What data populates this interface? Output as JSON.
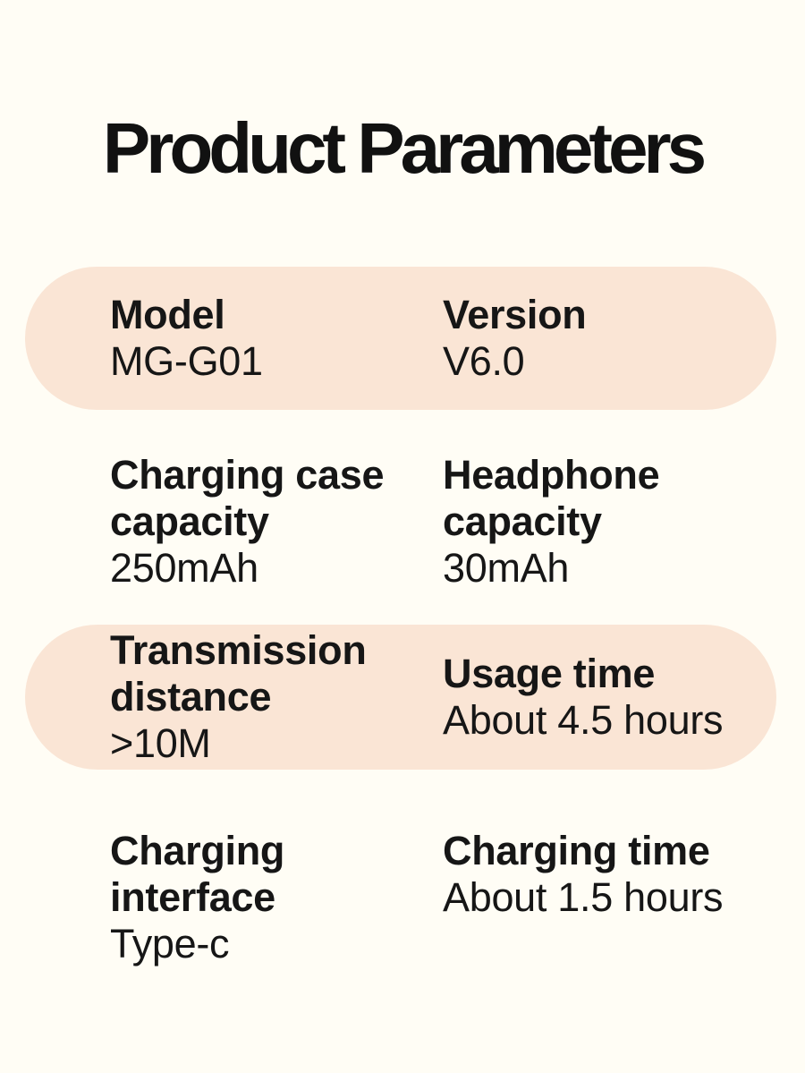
{
  "title": "Product Parameters",
  "colors": {
    "background": "#FFFDF5",
    "pill": "#FAE5D5",
    "text": "#161616",
    "title": "#111111"
  },
  "rows": [
    {
      "highlighted": true,
      "cells": [
        {
          "label": "Model",
          "value": "MG-G01"
        },
        {
          "label": "Version",
          "value": "V6.0"
        }
      ]
    },
    {
      "highlighted": false,
      "cells": [
        {
          "label": "Charging case capacity",
          "value": "250mAh"
        },
        {
          "label": "Headphone capacity",
          "value": "30mAh"
        }
      ]
    },
    {
      "highlighted": true,
      "cells": [
        {
          "label": "Transmission distance",
          "value": ">10M"
        },
        {
          "label": "Usage time",
          "value": "About 4.5 hours"
        }
      ]
    },
    {
      "highlighted": false,
      "cells": [
        {
          "label": "Charging interface",
          "value": "Type-c"
        },
        {
          "label": "Charging time",
          "value": "About 1.5 hours"
        }
      ]
    }
  ]
}
